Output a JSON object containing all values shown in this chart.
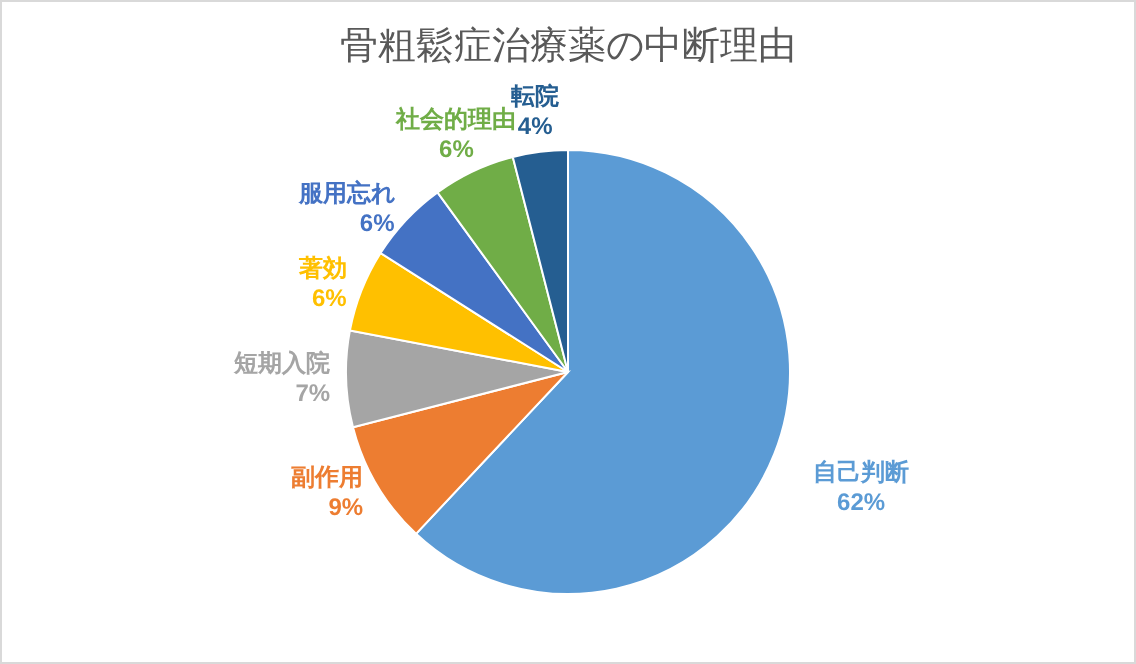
{
  "chart_data": {
    "type": "pie",
    "title": "骨粗鬆症治療薬の中断理由",
    "categories": [
      "自己判断",
      "副作用",
      "短期入院",
      "著効",
      "服用忘れ",
      "社会的理由",
      "転院"
    ],
    "values": [
      62,
      9,
      7,
      6,
      6,
      6,
      4
    ],
    "colors": [
      "#5b9bd5",
      "#ed7d31",
      "#a5a5a5",
      "#ffc000",
      "#4472c4",
      "#70ad47",
      "#255e91"
    ],
    "value_labels": [
      "62%",
      "9%",
      "7%",
      "6%",
      "6%",
      "6%",
      "4%"
    ]
  }
}
